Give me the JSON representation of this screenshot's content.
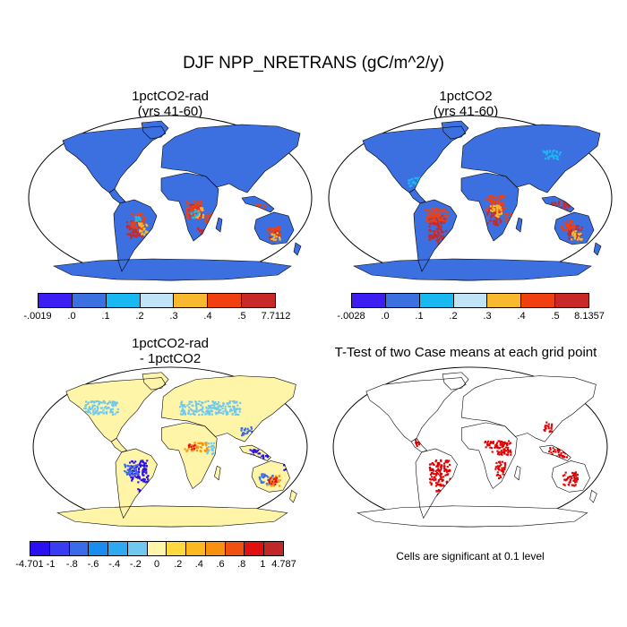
{
  "figure": {
    "title": "DJF NPP_NRETRANS (gC/m^2/y)",
    "colors": {
      "ocean": "#ffffff",
      "coast": "#000000",
      "significant": "#e00000"
    }
  },
  "panels": [
    {
      "id": "top-left",
      "title_line1": "1pctCO2-rad",
      "title_line2": "(yrs 41-60)",
      "base_fill": "#3c6fe0",
      "colorbar": {
        "colors": [
          "#3c1ef5",
          "#3c6fe0",
          "#1ab8f0",
          "#c0e4f5",
          "#f8b830",
          "#f04010",
          "#c82828"
        ],
        "labels": [
          "-.0019",
          ".0",
          ".1",
          ".2",
          ".3",
          ".4",
          ".5",
          "7.7112"
        ]
      }
    },
    {
      "id": "top-right",
      "title_line1": "1pctCO2",
      "title_line2": "(yrs 41-60)",
      "base_fill": "#3c6fe0",
      "colorbar": {
        "colors": [
          "#3c1ef5",
          "#3c6fe0",
          "#1ab8f0",
          "#c0e4f5",
          "#f8b830",
          "#f04010",
          "#c82828"
        ],
        "labels": [
          "-.0028",
          ".0",
          ".1",
          ".2",
          ".3",
          ".4",
          ".5",
          "8.1357"
        ]
      }
    },
    {
      "id": "bottom-left",
      "title_line1": "1pctCO2-rad",
      "title_line2": "- 1pctCO2",
      "base_fill": "#fff5a8",
      "colorbar": {
        "colors": [
          "#2a10f0",
          "#3a3cf0",
          "#3a6ce8",
          "#1a8cf0",
          "#30a8f0",
          "#70c8f0",
          "#fff5a8",
          "#fdd840",
          "#fbb820",
          "#f89010",
          "#f05010",
          "#e01010",
          "#c02828"
        ],
        "labels": [
          "-4.701",
          "-1",
          "-.8",
          "-.6",
          "-.4",
          "-.2",
          "0",
          ".2",
          ".4",
          ".6",
          ".8",
          "1",
          "4.787"
        ]
      }
    },
    {
      "id": "bottom-right",
      "title_line1": "T-Test of two Case means at each grid point",
      "base_fill": "#ffffff",
      "note": "Cells are significant at 0.1 level"
    }
  ]
}
